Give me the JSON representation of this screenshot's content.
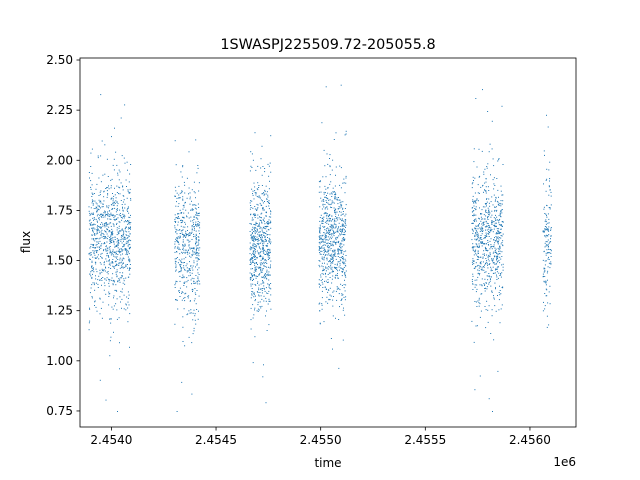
{
  "chart_data": {
    "type": "scatter",
    "title": "1SWASPJ225509.72-205055.8",
    "xlabel": "time",
    "ylabel": "flux",
    "x_offset_label": "1e6",
    "xlim": [
      2.45385,
      2.45622
    ],
    "ylim": [
      0.67,
      2.51
    ],
    "x_tick_values": [
      2.454,
      2.4545,
      2.455,
      2.4555,
      2.456
    ],
    "x_tick_labels": [
      "2.4540",
      "2.4545",
      "2.4550",
      "2.4555",
      "2.4560"
    ],
    "y_tick_values": [
      0.75,
      1.0,
      1.25,
      1.5,
      1.75,
      2.0,
      2.25,
      2.5
    ],
    "y_tick_labels": [
      "0.75",
      "1.00",
      "1.25",
      "1.50",
      "1.75",
      "2.00",
      "2.25",
      "2.50"
    ],
    "grid": false,
    "marker_color": "#1f77b4",
    "series": [
      {
        "clusters": [
          {
            "x_range": [
              2.45389,
              2.45409
            ],
            "y_center": 1.6,
            "count": 900
          },
          {
            "x_range": [
              2.4543,
              2.45442
            ],
            "y_center": 1.58,
            "count": 500
          },
          {
            "x_range": [
              2.45466,
              2.45476
            ],
            "y_center": 1.57,
            "count": 600
          },
          {
            "x_range": [
              2.45499,
              2.45512
            ],
            "y_center": 1.6,
            "count": 700
          },
          {
            "x_range": [
              2.45572,
              2.45587
            ],
            "y_center": 1.6,
            "count": 700
          },
          {
            "x_range": [
              2.45606,
              2.4561
            ],
            "y_center": 1.6,
            "count": 150
          }
        ]
      }
    ]
  }
}
